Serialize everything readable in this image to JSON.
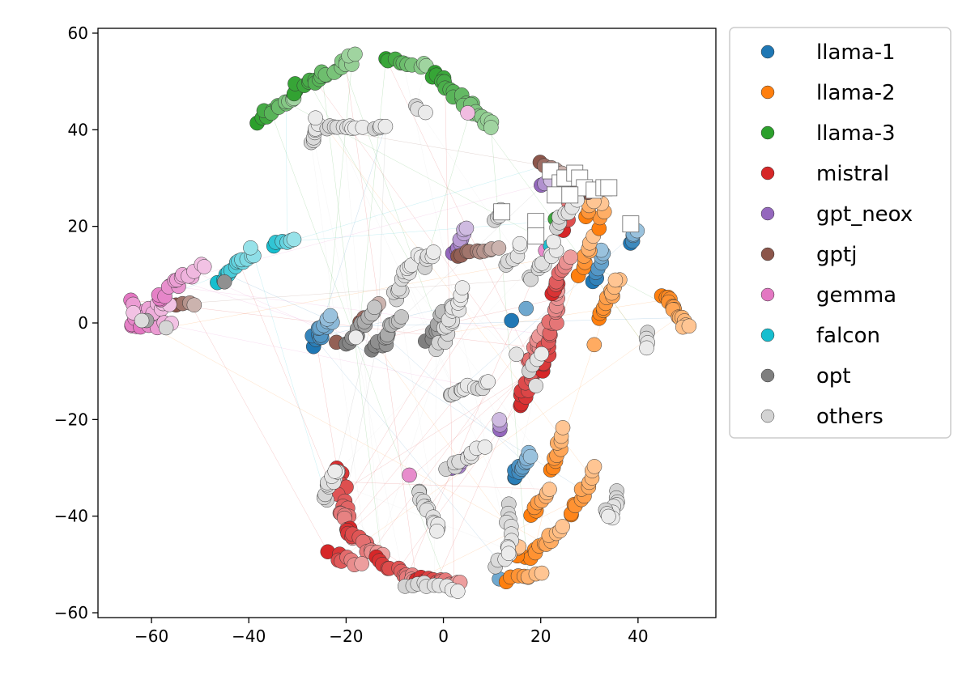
{
  "chart_data": {
    "type": "scatter",
    "title": "",
    "xlabel": "",
    "ylabel": "",
    "xlim": [
      -71,
      56
    ],
    "ylim": [
      -61,
      61
    ],
    "x_ticks": [
      -60,
      -40,
      -20,
      0,
      20,
      40
    ],
    "y_ticks": [
      -60,
      -40,
      -20,
      0,
      20,
      40,
      60
    ],
    "x_tick_labels": [
      "−60",
      "−40",
      "−20",
      "0",
      "20",
      "40"
    ],
    "y_tick_labels": [
      "−60",
      "−40",
      "−20",
      "0",
      "20",
      "40",
      "60"
    ],
    "grid": false,
    "legend_position": "outside-right-top",
    "series": [
      {
        "name": "llama-1",
        "color": "#1f77b4",
        "clusters": [
          {
            "from": [
              -27,
              -4.5
            ],
            "to": [
              -23,
              1.5
            ],
            "n": 18,
            "spread": 1.0
          },
          {
            "from": [
              14,
              -32
            ],
            "to": [
              18,
              -27
            ],
            "n": 12,
            "spread": 0.7
          },
          {
            "from": [
              31,
              9
            ],
            "to": [
              33,
              15
            ],
            "n": 8,
            "spread": 0.6
          },
          {
            "from": [
              38.5,
              16.5
            ],
            "to": [
              39.5,
              19
            ],
            "n": 5,
            "spread": 0.4
          }
        ],
        "points": [
          [
            14,
            0.5
          ],
          [
            17,
            3
          ],
          [
            11.5,
            -53
          ]
        ]
      },
      {
        "name": "llama-2",
        "color": "#ff7f0e",
        "clusters": [
          {
            "from": [
              17,
              -49
            ],
            "to": [
              24,
              -42
            ],
            "n": 12,
            "spread": 0.8
          },
          {
            "from": [
              13,
              -53
            ],
            "to": [
              20,
              -52
            ],
            "n": 8,
            "spread": 0.6
          },
          {
            "from": [
              18,
              -40
            ],
            "to": [
              22,
              -34
            ],
            "n": 8,
            "spread": 0.6
          },
          {
            "from": [
              22,
              -31
            ],
            "to": [
              25,
              -22
            ],
            "n": 10,
            "spread": 0.6
          },
          {
            "from": [
              26,
              -40
            ],
            "to": [
              31,
              -30
            ],
            "n": 12,
            "spread": 0.7
          },
          {
            "from": [
              15,
              -48
            ],
            "to": [
              16,
              -46
            ],
            "n": 3,
            "spread": 0.5
          },
          {
            "from": [
              32,
              1
            ],
            "to": [
              36,
              9
            ],
            "n": 12,
            "spread": 0.7
          },
          {
            "from": [
              45,
              6
            ],
            "to": [
              50,
              -1
            ],
            "n": 16,
            "spread": 0.6
          },
          {
            "from": [
              28,
              10
            ],
            "to": [
              31,
              18
            ],
            "n": 8,
            "spread": 0.6
          },
          {
            "from": [
              32,
              20
            ],
            "to": [
              33,
              25
            ],
            "n": 4,
            "spread": 0.5
          },
          {
            "from": [
              29,
              22
            ],
            "to": [
              31,
              25
            ],
            "n": 4,
            "spread": 0.5
          }
        ],
        "points": [
          [
            31,
            -4.5
          ]
        ]
      },
      {
        "name": "llama-3",
        "color": "#2ca02c",
        "clusters": [
          {
            "from": [
              -38,
              42
            ],
            "to": [
              -30,
              47
            ],
            "n": 14,
            "spread": 0.8
          },
          {
            "from": [
              -31,
              48
            ],
            "to": [
              -18,
              55
            ],
            "n": 22,
            "spread": 0.9
          },
          {
            "from": [
              -12,
              55
            ],
            "to": [
              -3,
              53
            ],
            "n": 10,
            "spread": 0.6
          },
          {
            "from": [
              -2,
              52
            ],
            "to": [
              10,
              40.5
            ],
            "n": 24,
            "spread": 0.8
          }
        ],
        "points": [
          [
            23,
            21.5
          ]
        ]
      },
      {
        "name": "mistral",
        "color": "#d62728",
        "clusters": [
          {
            "from": [
              -22,
              -30
            ],
            "to": [
              -19,
              -45
            ],
            "n": 22,
            "spread": 1.1
          },
          {
            "from": [
              -20,
              -43
            ],
            "to": [
              -13,
              -48
            ],
            "n": 14,
            "spread": 0.9
          },
          {
            "from": [
              -13,
              -49
            ],
            "to": [
              -5,
              -54
            ],
            "n": 14,
            "spread": 0.8
          },
          {
            "from": [
              -5,
              -53
            ],
            "to": [
              3,
              -54
            ],
            "n": 14,
            "spread": 0.6
          },
          {
            "from": [
              -23,
              -48
            ],
            "to": [
              -17,
              -50
            ],
            "n": 8,
            "spread": 0.8
          },
          {
            "from": [
              16,
              -17
            ],
            "to": [
              20,
              -2
            ],
            "n": 24,
            "spread": 0.9
          },
          {
            "from": [
              20,
              -10
            ],
            "to": [
              24,
              6
            ],
            "n": 22,
            "spread": 0.9
          },
          {
            "from": [
              22,
              6
            ],
            "to": [
              26,
              13
            ],
            "n": 10,
            "spread": 0.7
          },
          {
            "from": [
              25,
              19
            ],
            "to": [
              27,
              27
            ],
            "n": 4,
            "spread": 0.6
          }
        ],
        "points": []
      },
      {
        "name": "gpt_neox",
        "color": "#9467bd",
        "clusters": [
          {
            "from": [
              2,
              14
            ],
            "to": [
              5,
              20
            ],
            "n": 9,
            "spread": 0.5
          },
          {
            "from": [
              11.5,
              -22
            ],
            "to": [
              11.5,
              -20
            ],
            "n": 3,
            "spread": 0.2
          },
          {
            "from": [
              2,
              -30
            ],
            "to": [
              5,
              -28
            ],
            "n": 4,
            "spread": 0.4
          },
          {
            "from": [
              20,
              28.5
            ],
            "to": [
              22,
              29.5
            ],
            "n": 3,
            "spread": 0.3
          }
        ],
        "points": []
      },
      {
        "name": "gptj",
        "color": "#8c564b",
        "clusters": [
          {
            "from": [
              3,
              14
            ],
            "to": [
              11,
              16
            ],
            "n": 10,
            "spread": 0.5
          },
          {
            "from": [
              -17,
              0
            ],
            "to": [
              -13,
              4
            ],
            "n": 5,
            "spread": 0.4
          },
          {
            "from": [
              -55,
              4
            ],
            "to": [
              -51,
              4
            ],
            "n": 4,
            "spread": 0.3
          },
          {
            "from": [
              20,
              33
            ],
            "to": [
              24,
              31
            ],
            "n": 5,
            "spread": 0.4
          },
          {
            "from": [
              30,
              27
            ],
            "to": [
              32,
              28
            ],
            "n": 2,
            "spread": 0.3
          }
        ],
        "points": [
          [
            -22,
            -4
          ]
        ]
      },
      {
        "name": "gemma",
        "color": "#e377c2",
        "clusters": [
          {
            "from": [
              -64,
              0
            ],
            "to": [
              -57,
              4
            ],
            "n": 16,
            "spread": 1.0
          },
          {
            "from": [
              -59,
              5
            ],
            "to": [
              -50,
              12
            ],
            "n": 16,
            "spread": 1.0
          },
          {
            "from": [
              -64,
              5
            ],
            "to": [
              -64,
              2
            ],
            "n": 3,
            "spread": 0.4
          },
          {
            "from": [
              -62,
              -1
            ],
            "to": [
              -56,
              0
            ],
            "n": 5,
            "spread": 0.5
          }
        ],
        "points": [
          [
            5,
            43.5
          ],
          [
            -7,
            -31.5
          ],
          [
            21,
            15
          ]
        ]
      },
      {
        "name": "falcon",
        "color": "#17becf",
        "clusters": [
          {
            "from": [
              -46,
              9
            ],
            "to": [
              -39,
              15
            ],
            "n": 16,
            "spread": 0.7
          },
          {
            "from": [
              -35,
              16
            ],
            "to": [
              -31,
              17
            ],
            "n": 6,
            "spread": 0.5
          }
        ],
        "points": [
          [
            22,
            16
          ]
        ]
      },
      {
        "name": "opt",
        "color": "#7f7f7f",
        "clusters": [
          {
            "from": [
              -20,
              -4
            ],
            "to": [
              -14,
              3
            ],
            "n": 12,
            "spread": 0.8
          },
          {
            "from": [
              -14,
              -6
            ],
            "to": [
              -9,
              1
            ],
            "n": 14,
            "spread": 0.8
          },
          {
            "from": [
              -3,
              -4
            ],
            "to": [
              1,
              3
            ],
            "n": 10,
            "spread": 0.8
          }
        ],
        "points": [
          [
            -61,
            0.5
          ],
          [
            -45,
            8.5
          ]
        ]
      },
      {
        "name": "others",
        "color": "#d3d3d3",
        "clusters": [
          {
            "from": [
              -27,
              37
            ],
            "to": [
              -26,
              42
            ],
            "n": 8,
            "spread": 0.5
          },
          {
            "from": [
              -24,
              40.5
            ],
            "to": [
              -17,
              40.5
            ],
            "n": 10,
            "spread": 0.5
          },
          {
            "from": [
              -14,
              40.5
            ],
            "to": [
              -12,
              40.5
            ],
            "n": 4,
            "spread": 0.3
          },
          {
            "from": [
              -6,
              45
            ],
            "to": [
              -4,
              43.5
            ],
            "n": 3,
            "spread": 0.4
          },
          {
            "from": [
              -10,
              5
            ],
            "to": [
              -5,
              14
            ],
            "n": 14,
            "spread": 0.9
          },
          {
            "from": [
              -4,
              12
            ],
            "to": [
              -2,
              15
            ],
            "n": 5,
            "spread": 0.6
          },
          {
            "from": [
              -1,
              -5
            ],
            "to": [
              4,
              7
            ],
            "n": 18,
            "spread": 0.9
          },
          {
            "from": [
              1,
              -15
            ],
            "to": [
              6,
              -13
            ],
            "n": 8,
            "spread": 0.5
          },
          {
            "from": [
              7,
              -14
            ],
            "to": [
              9,
              -12
            ],
            "n": 4,
            "spread": 0.5
          },
          {
            "from": [
              1,
              -30
            ],
            "to": [
              8,
              -26
            ],
            "n": 9,
            "spread": 0.6
          },
          {
            "from": [
              -24,
              -36
            ],
            "to": [
              -22,
              -30
            ],
            "n": 12,
            "spread": 0.8
          },
          {
            "from": [
              -5,
              -35
            ],
            "to": [
              -1,
              -43
            ],
            "n": 14,
            "spread": 0.7
          },
          {
            "from": [
              -8,
              -54
            ],
            "to": [
              3,
              -55
            ],
            "n": 10,
            "spread": 0.6
          },
          {
            "from": [
              13,
              -38
            ],
            "to": [
              14,
              -48
            ],
            "n": 10,
            "spread": 0.6
          },
          {
            "from": [
              11,
              -50
            ],
            "to": [
              13,
              -48
            ],
            "n": 4,
            "spread": 0.5
          },
          {
            "from": [
              36,
              -35
            ],
            "to": [
              35,
              -40
            ],
            "n": 7,
            "spread": 0.4
          },
          {
            "from": [
              33,
              -39
            ],
            "to": [
              34,
              -40
            ],
            "n": 3,
            "spread": 0.4
          },
          {
            "from": [
              42,
              -2
            ],
            "to": [
              42,
              -5
            ],
            "n": 4,
            "spread": 0.3
          },
          {
            "from": [
              13,
              12
            ],
            "to": [
              16,
              16
            ],
            "n": 6,
            "spread": 0.6
          },
          {
            "from": [
              18,
              9
            ],
            "to": [
              23,
              16
            ],
            "n": 10,
            "spread": 0.8
          },
          {
            "from": [
              10,
              21
            ],
            "to": [
              12,
              23
            ],
            "n": 4,
            "spread": 0.5
          },
          {
            "from": [
              18,
              -10
            ],
            "to": [
              20,
              -6
            ],
            "n": 4,
            "spread": 0.5
          },
          {
            "from": [
              23,
              20
            ],
            "to": [
              28,
              26
            ],
            "n": 8,
            "spread": 0.8
          }
        ],
        "points": [
          [
            15,
            -6.5
          ],
          [
            19,
            -13
          ],
          [
            -18,
            -3
          ],
          [
            -62,
            0.5
          ],
          [
            -57,
            -1
          ]
        ]
      }
    ],
    "square_markers": [
      [
        12,
        23
      ],
      [
        19,
        21
      ],
      [
        19,
        18
      ],
      [
        22,
        31.5
      ],
      [
        24,
        29
      ],
      [
        25,
        30
      ],
      [
        27,
        31
      ],
      [
        28,
        30
      ],
      [
        29,
        28
      ],
      [
        23,
        26.5
      ],
      [
        26,
        26.5
      ],
      [
        31,
        27.5
      ],
      [
        33,
        28
      ],
      [
        34,
        28
      ],
      [
        38.5,
        20.5
      ]
    ]
  }
}
